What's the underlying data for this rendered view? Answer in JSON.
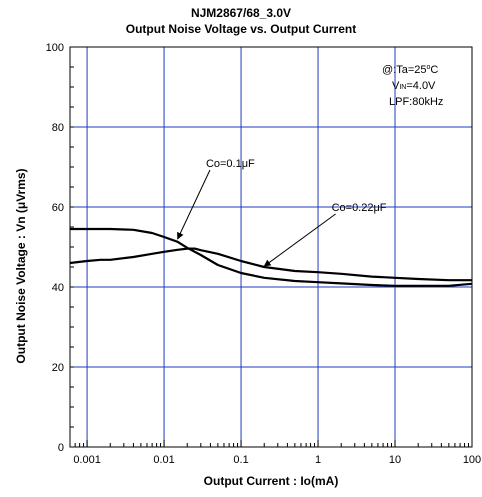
{
  "chart_data": {
    "type": "line",
    "title": "NJM2867/68_3.0V",
    "subtitle": "Output Noise Voltage vs. Output Current",
    "xlabel": "Output Current : Io(mA)",
    "ylabel": "Output Noise Voltage : Vn (μVrms)",
    "xscale": "log",
    "xlim": [
      0.0006,
      100
    ],
    "ylim": [
      0,
      100
    ],
    "x_ticks": [
      "0.001",
      "0.01",
      "0.1",
      "1",
      "10",
      "100"
    ],
    "y_ticks": [
      "0",
      "20",
      "40",
      "60",
      "80",
      "100"
    ],
    "grid": true,
    "conditions": {
      "line1_pre": "@:Ta=25",
      "line1_deg": "o",
      "line1_post": "C",
      "line2_pre": "V",
      "line2_sub": "IN",
      "line2_post": "=4.0V",
      "line3": "LPF:80kHz"
    },
    "series": [
      {
        "name": "Co=0.1μF",
        "x": [
          0.0006,
          0.001,
          0.002,
          0.004,
          0.007,
          0.01,
          0.015,
          0.02,
          0.03,
          0.05,
          0.1,
          0.2,
          0.5,
          1,
          2,
          5,
          10,
          20,
          50,
          100
        ],
        "y": [
          54.5,
          54.5,
          54.5,
          54.3,
          53.5,
          52.5,
          51.3,
          49.8,
          48,
          45.5,
          43.5,
          42.3,
          41.5,
          41.2,
          40.9,
          40.5,
          40.3,
          40.3,
          40.3,
          40.8
        ]
      },
      {
        "name": "Co=0.22μF",
        "x": [
          0.0006,
          0.001,
          0.0015,
          0.002,
          0.004,
          0.007,
          0.01,
          0.015,
          0.02,
          0.025,
          0.03,
          0.05,
          0.1,
          0.2,
          0.5,
          1,
          2,
          5,
          10,
          20,
          50,
          100
        ],
        "y": [
          46,
          46.5,
          46.8,
          46.8,
          47.5,
          48.3,
          48.8,
          49.3,
          49.6,
          49.6,
          49.2,
          48.3,
          46.5,
          45,
          44,
          43.7,
          43.3,
          42.6,
          42.3,
          42,
          41.7,
          41.7
        ]
      }
    ],
    "annotations": [
      {
        "text": "Co=0.1μF",
        "text_x": 0.035,
        "text_y": 70,
        "arrow_x": 0.015,
        "arrow_y": 52
      },
      {
        "text": "Co=0.22μF",
        "text_x": 1.5,
        "text_y": 59,
        "arrow_x": 0.2,
        "arrow_y": 45.2
      }
    ]
  }
}
